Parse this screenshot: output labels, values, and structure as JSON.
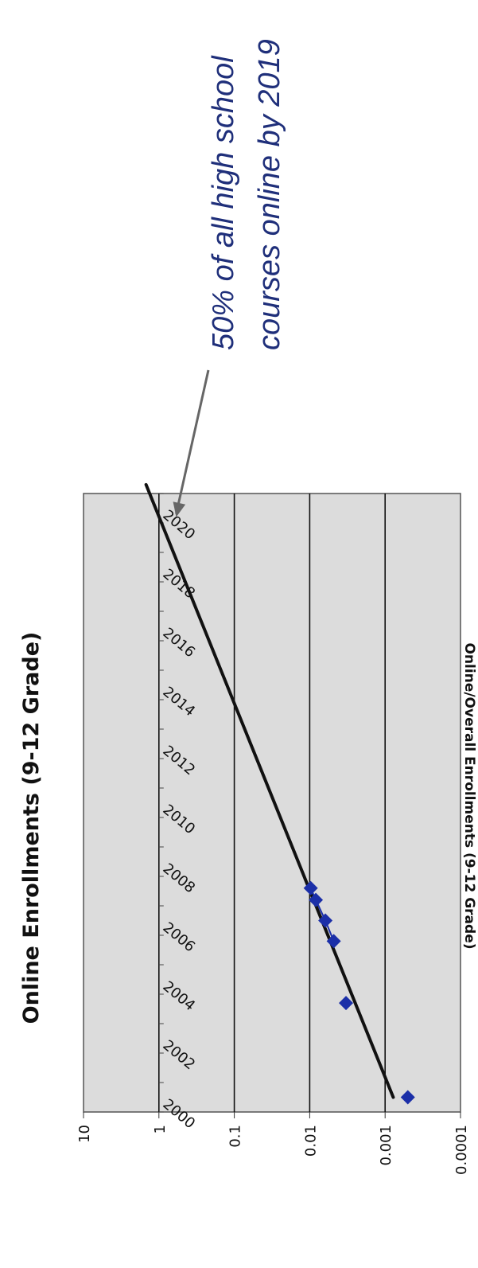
{
  "chart_data": {
    "type": "scatter",
    "title": "Online Enrollments (9-12 Grade)",
    "ylabel": "Online/Overall Enrollments (9-12 Grade)",
    "xlabel": "",
    "yscale": "log",
    "ylim": [
      0.0001,
      10
    ],
    "xlim": [
      2000,
      2021
    ],
    "y_ticks": [
      "10",
      "1",
      "0.1",
      "0.01",
      "0.001",
      "0.0001"
    ],
    "x_ticks": [
      "2000",
      "2002",
      "2004",
      "2006",
      "2008",
      "2010",
      "2012",
      "2014",
      "2016",
      "2018",
      "2020"
    ],
    "grid": true,
    "series": [
      {
        "points": [
          {
            "x": 2000.5,
            "y": 0.0005
          },
          {
            "x": 2003.7,
            "y": 0.0033
          },
          {
            "x": 2005.8,
            "y": 0.0048
          },
          {
            "x": 2006.5,
            "y": 0.0062
          },
          {
            "x": 2007.2,
            "y": 0.0083
          },
          {
            "x": 2007.6,
            "y": 0.0097
          }
        ],
        "color": "#1b2fa8"
      }
    ],
    "trendline": {
      "from": {
        "x": 2000.5,
        "y": 0.00078
      },
      "to": {
        "x": 2021.3,
        "y": 1.48
      },
      "color": "#111111"
    },
    "annotation": {
      "lines": [
        "50% of all high school",
        "courses online by 2019"
      ],
      "color": "#1f2f7a",
      "target": {
        "x": 2020.2,
        "y": 0.59
      }
    }
  }
}
